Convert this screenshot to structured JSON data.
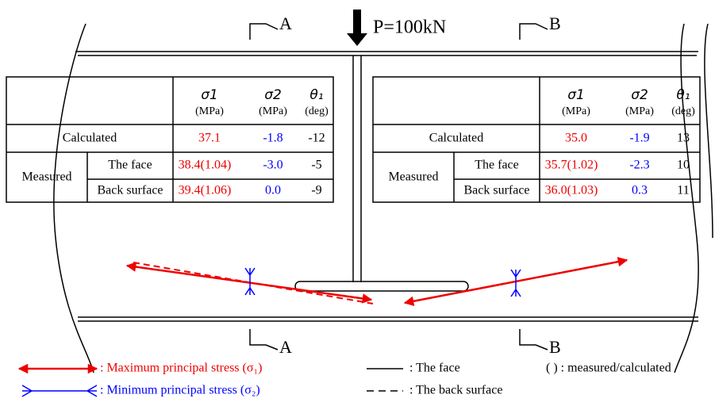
{
  "load": "P=100kN",
  "sections": [
    "A",
    "B"
  ],
  "tables": [
    {
      "header": [
        "σ1",
        "σ2",
        "θ₁"
      ],
      "units": [
        "(MPa)",
        "(MPa)",
        "(deg)"
      ],
      "calculated": {
        "label": "Calculated",
        "values": [
          "37.1",
          "-1.8",
          "-12"
        ]
      },
      "measured": {
        "label": "Measured",
        "rows": [
          {
            "label": "The face",
            "values": [
              "38.4(1.04)",
              "-3.0",
              "-5"
            ]
          },
          {
            "label": "Back surface",
            "values": [
              "39.4(1.06)",
              "0.0",
              "-9"
            ]
          }
        ]
      }
    },
    {
      "header": [
        "σ1",
        "σ2",
        "θ₁"
      ],
      "units": [
        "(MPa)",
        "(MPa)",
        "(deg)"
      ],
      "calculated": {
        "label": "Calculated",
        "values": [
          "35.0",
          "-1.9",
          "13"
        ]
      },
      "measured": {
        "label": "Measured",
        "rows": [
          {
            "label": "The face",
            "values": [
              "35.7(1.02)",
              "-2.3",
              "10"
            ]
          },
          {
            "label": "Back surface",
            "values": [
              "36.0(1.03)",
              "0.3",
              "11"
            ]
          }
        ]
      }
    }
  ],
  "legend": [
    ": Maximum principal stress (σ₁)",
    ": Minimum principal stress (σ₂)",
    ": The face",
    ": The back surface",
    "( ) : measured/calculated"
  ]
}
